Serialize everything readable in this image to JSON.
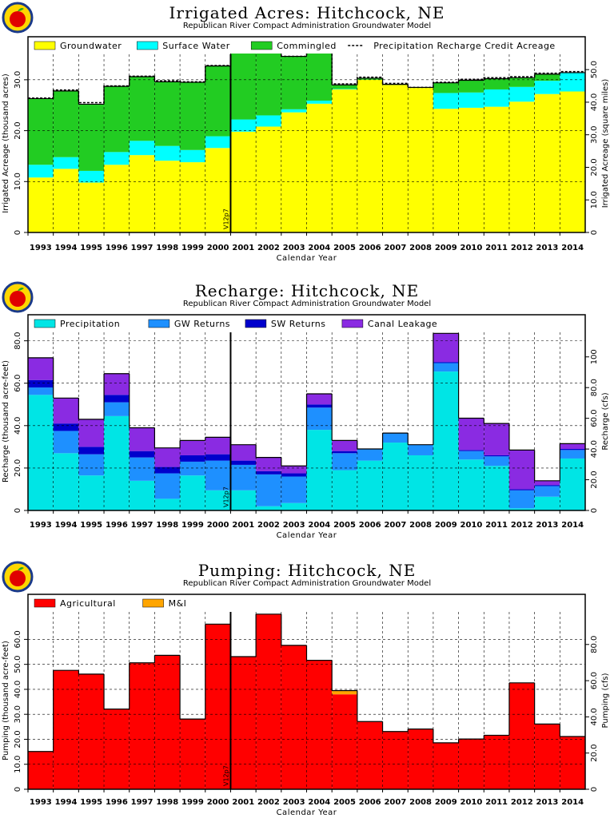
{
  "years": [
    "1993",
    "1994",
    "1995",
    "1996",
    "1997",
    "1998",
    "1999",
    "2000",
    "2001",
    "2002",
    "2003",
    "2004",
    "2005",
    "2006",
    "2007",
    "2008",
    "2009",
    "2010",
    "2011",
    "2012",
    "2013",
    "2014"
  ],
  "colors": {
    "groundwater": "#ffff00",
    "surface_water": "#00ffff",
    "commingled": "#22cc22",
    "precipitation": "#00e5e5",
    "gw_returns": "#1e90ff",
    "sw_returns": "#0000cc",
    "canal_leakage": "#8a2be2",
    "agricultural": "#ff0000",
    "mi": "#ffa500"
  },
  "chart_data": [
    {
      "type": "area",
      "title": "Irrigated Acres: Hitchcock, NE",
      "subtitle": "Republican River Compact Administration Groundwater Model",
      "xlabel": "Calendar Year",
      "ylabel": "Irrigated Acreage (thousand acres)",
      "ylabel2": "Irrigated Acreage (square miles)",
      "ylim": [
        0,
        35
      ],
      "y2lim": [
        0,
        54.7
      ],
      "yticks": [
        "0",
        "10.0",
        "20.0",
        "30.0"
      ],
      "y2ticks": [
        "0",
        "10.0",
        "20.0",
        "30.0",
        "40.0",
        "50.0"
      ],
      "stacked": true,
      "grid": true,
      "legend_position": "top",
      "marker_label": "V12p7",
      "marker_after_year": "2000",
      "series": [
        {
          "name": "Groundwater",
          "color_key": "groundwater",
          "values": [
            10.8,
            12.5,
            9.8,
            13.3,
            15.2,
            14.1,
            13.8,
            16.6,
            19.8,
            20.8,
            23.6,
            25.3,
            28.1,
            30.0,
            29.0,
            28.4,
            24.3,
            24.5,
            24.7,
            25.7,
            27.2,
            27.7
          ]
        },
        {
          "name": "Surface Water",
          "color_key": "surface_water",
          "values": [
            2.5,
            2.3,
            2.3,
            2.5,
            2.8,
            2.9,
            2.4,
            2.3,
            2.4,
            2.2,
            0.6,
            0.6,
            0.1,
            0.0,
            0.0,
            0.0,
            3.1,
            3.0,
            3.4,
            2.9,
            2.6,
            3.7
          ]
        },
        {
          "name": "Commingled",
          "color_key": "commingled",
          "values": [
            13.0,
            13.0,
            13.1,
            12.9,
            12.6,
            12.6,
            13.3,
            13.8,
            14.3,
            13.0,
            10.4,
            11.6,
            0.8,
            0.3,
            0.1,
            0.1,
            2.0,
            2.4,
            2.1,
            1.8,
            1.3,
            0.0
          ]
        },
        {
          "name": "Precipitation Recharge Credit Acreage",
          "color_key": "line",
          "style": "dashed",
          "values": [
            26.4,
            28.0,
            25.5,
            28.8,
            30.7,
            29.8,
            29.6,
            32.8,
            36.7,
            36.1,
            34.6,
            37.6,
            29.2,
            30.5,
            29.3,
            28.5,
            29.5,
            30.1,
            30.4,
            30.6,
            31.3,
            31.6
          ]
        }
      ]
    },
    {
      "type": "area",
      "title": "Recharge: Hitchcock, NE",
      "subtitle": "Republican River Compact Administration Groundwater Model",
      "xlabel": "Calendar Year",
      "ylabel": "Recharge (thousand acre-feet)",
      "ylabel2": "Recharge (cfs)",
      "ylim": [
        0,
        84
      ],
      "y2lim": [
        0,
        116
      ],
      "yticks": [
        "0",
        "20.0",
        "40.0",
        "60.0",
        "80.0"
      ],
      "y2ticks": [
        "0",
        "20.0",
        "40.0",
        "60.0",
        "80.0",
        "100"
      ],
      "stacked": true,
      "grid": true,
      "legend_position": "top",
      "marker_label": "V12p7",
      "marker_after_year": "2000",
      "series": [
        {
          "name": "Precipitation",
          "color_key": "precipitation",
          "values": [
            54.5,
            27.0,
            16.5,
            44.5,
            14.0,
            5.5,
            16.5,
            9.5,
            9.5,
            2.0,
            3.5,
            38.0,
            19.0,
            23.5,
            32.0,
            26.0,
            65.5,
            24.0,
            21.0,
            1.0,
            6.5,
            24.5
          ]
        },
        {
          "name": "GW Returns",
          "color_key": "gw_returns",
          "values": [
            3.5,
            10.5,
            10.0,
            6.5,
            11.0,
            12.0,
            6.5,
            14.0,
            12.0,
            15.0,
            12.5,
            10.5,
            8.0,
            5.5,
            4.5,
            5.0,
            4.0,
            4.0,
            4.5,
            8.5,
            5.0,
            4.0
          ]
        },
        {
          "name": "SW Returns",
          "color_key": "sw_returns",
          "values": [
            3.5,
            3.5,
            3.5,
            3.5,
            3.0,
            3.0,
            3.0,
            3.0,
            2.0,
            1.5,
            1.5,
            1.5,
            1.0,
            0.0,
            0.0,
            0.0,
            0.5,
            0.5,
            0.5,
            0.5,
            0.5,
            0.5
          ]
        },
        {
          "name": "Canal Leakage",
          "color_key": "canal_leakage",
          "values": [
            10.5,
            12.0,
            13.0,
            10.0,
            11.0,
            9.0,
            7.0,
            8.0,
            7.5,
            6.5,
            3.5,
            5.0,
            5.0,
            0.0,
            0.0,
            0.0,
            13.5,
            15.0,
            15.0,
            18.5,
            2.0,
            2.5
          ]
        }
      ]
    },
    {
      "type": "bar",
      "title": "Pumping: Hitchcock, NE",
      "subtitle": "Republican River Compact Administration Groundwater Model",
      "xlabel": "Calendar Year",
      "ylabel": "Pumping (thousand acre-feet)",
      "ylabel2": "Pumping (cfs)",
      "ylim": [
        0,
        71
      ],
      "y2lim": [
        0,
        98
      ],
      "yticks": [
        "0",
        "10.0",
        "20.0",
        "30.0",
        "40.0",
        "50.0",
        "60.0"
      ],
      "y2ticks": [
        "0",
        "20.0",
        "40.0",
        "60.0",
        "80.0"
      ],
      "stacked": true,
      "grid": true,
      "legend_position": "top",
      "marker_label": "V12p7",
      "marker_after_year": "2000",
      "series": [
        {
          "name": "Agricultural",
          "color_key": "agricultural",
          "values": [
            15.0,
            47.5,
            46.0,
            32.0,
            50.5,
            53.5,
            28.0,
            66.0,
            53.0,
            70.0,
            57.5,
            51.5,
            38.0,
            27.0,
            23.0,
            24.0,
            18.5,
            20.0,
            21.5,
            42.5,
            26.0,
            21.0
          ]
        },
        {
          "name": "M&I",
          "color_key": "mi",
          "values": [
            0.1,
            0.1,
            0.1,
            0.1,
            0.1,
            0.1,
            0.1,
            0.1,
            0.1,
            0.1,
            0.1,
            0.1,
            1.5,
            0.1,
            0.1,
            0.1,
            0.1,
            0.1,
            0.1,
            0.1,
            0.1,
            0.1
          ]
        }
      ]
    }
  ]
}
